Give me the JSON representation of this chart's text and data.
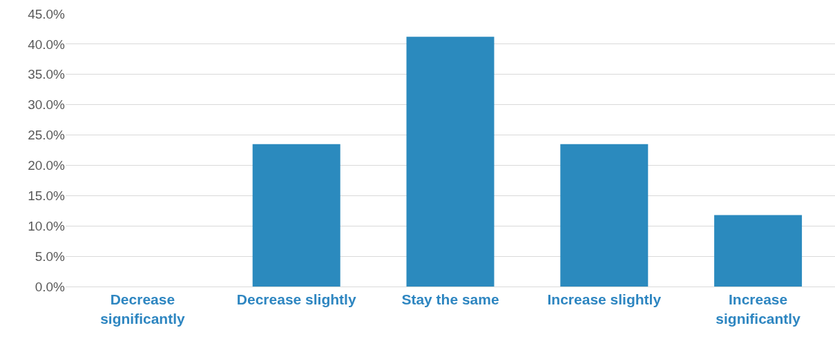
{
  "chart_data": {
    "type": "bar",
    "categories": [
      "Decrease significantly",
      "Decrease slightly",
      "Stay the same",
      "Increase slightly",
      "Increase significantly"
    ],
    "values": [
      0,
      23.5,
      41.2,
      23.5,
      11.8
    ],
    "color": "#2b8abe",
    "ylim": [
      0,
      45
    ],
    "yticks": [
      {
        "value": 0,
        "label": "0.0%"
      },
      {
        "value": 5,
        "label": "5.0%"
      },
      {
        "value": 10,
        "label": "10.0%"
      },
      {
        "value": 15,
        "label": "15.0%"
      },
      {
        "value": 20,
        "label": "20.0%"
      },
      {
        "value": 25,
        "label": "25.0%"
      },
      {
        "value": 30,
        "label": "30.0%"
      },
      {
        "value": 35,
        "label": "35.0%"
      },
      {
        "value": 40,
        "label": "40.0%"
      },
      {
        "value": 45,
        "label": "45.0%"
      }
    ],
    "grid": "y"
  }
}
